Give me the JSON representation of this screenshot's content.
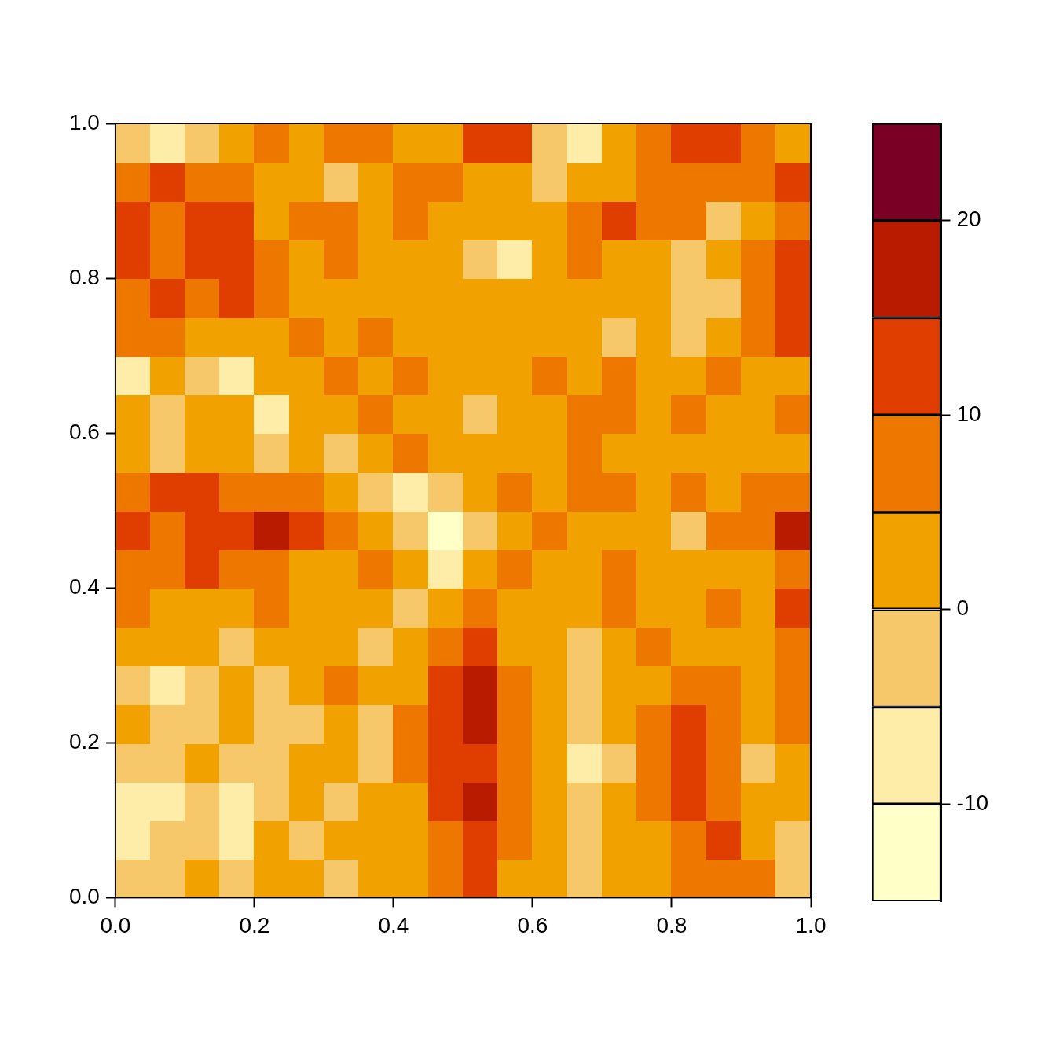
{
  "chart_data": {
    "type": "heatmap",
    "xlim": [
      0,
      1
    ],
    "xticks": [
      {
        "value": 0,
        "label": "0.0"
      },
      {
        "value": 0.2,
        "label": "0.2"
      },
      {
        "value": 0.4,
        "label": "0.4"
      },
      {
        "value": 0.6,
        "label": "0.6"
      },
      {
        "value": 0.8,
        "label": "0.8"
      },
      {
        "value": 1,
        "label": "1.0"
      }
    ],
    "ylim": [
      0,
      1
    ],
    "yticks": [
      {
        "value": 0,
        "label": "0.0"
      },
      {
        "value": 0.2,
        "label": "0.2"
      },
      {
        "value": 0.4,
        "label": "0.4"
      },
      {
        "value": 0.6,
        "label": "0.6"
      },
      {
        "value": 0.8,
        "label": "0.8"
      },
      {
        "value": 1,
        "label": "1.0"
      }
    ],
    "grid": false,
    "x": [
      0.025,
      0.075,
      0.125,
      0.175,
      0.225,
      0.275,
      0.325,
      0.375,
      0.425,
      0.475,
      0.525,
      0.575,
      0.625,
      0.675,
      0.725,
      0.775,
      0.825,
      0.875,
      0.925,
      0.975
    ],
    "y": [
      0.025,
      0.075,
      0.125,
      0.175,
      0.225,
      0.275,
      0.325,
      0.375,
      0.425,
      0.475,
      0.525,
      0.575,
      0.625,
      0.675,
      0.725,
      0.775,
      0.825,
      0.875,
      0.925,
      0.975
    ],
    "z": [
      [
        -2,
        -3,
        2,
        -2,
        2,
        2,
        -2,
        2,
        2,
        7,
        12,
        2,
        2,
        -2,
        2,
        2,
        7,
        7,
        7,
        -2
      ],
      [
        -7,
        -2,
        -2,
        -7,
        2,
        -2,
        2,
        2,
        2,
        7,
        12,
        7,
        2,
        -2,
        2,
        2,
        7,
        12,
        2,
        -2
      ],
      [
        -7,
        -7,
        -2,
        -7,
        -2,
        2,
        -2,
        2,
        2,
        12,
        17,
        7,
        2,
        -2,
        2,
        7,
        12,
        7,
        2,
        2
      ],
      [
        -2,
        -2,
        2,
        -2,
        -2,
        2,
        2,
        -2,
        7,
        12,
        12,
        7,
        2,
        -7,
        -2,
        7,
        12,
        7,
        -2,
        2
      ],
      [
        2,
        -2,
        -2,
        2,
        -2,
        -2,
        2,
        -2,
        7,
        12,
        17,
        7,
        2,
        -2,
        2,
        7,
        12,
        7,
        2,
        7
      ],
      [
        -2,
        -7,
        -2,
        2,
        -2,
        2,
        7,
        2,
        2,
        12,
        17,
        7,
        2,
        -2,
        2,
        2,
        7,
        7,
        2,
        7
      ],
      [
        2,
        2,
        2,
        -2,
        2,
        2,
        2,
        -2,
        2,
        7,
        12,
        2,
        2,
        -2,
        2,
        7,
        2,
        2,
        2,
        7
      ],
      [
        7,
        2,
        2,
        2,
        7,
        2,
        2,
        2,
        -2,
        2,
        7,
        2,
        2,
        2,
        7,
        2,
        2,
        7,
        2,
        12
      ],
      [
        7,
        7,
        12,
        7,
        7,
        2,
        2,
        7,
        2,
        -7,
        2,
        7,
        2,
        2,
        7,
        2,
        2,
        2,
        2,
        7
      ],
      [
        12,
        7,
        12,
        12,
        17,
        12,
        7,
        2,
        -2,
        -12,
        -2,
        2,
        7,
        2,
        2,
        2,
        -2,
        7,
        7,
        17
      ],
      [
        7,
        12,
        12,
        7,
        7,
        7,
        2,
        -2,
        -7,
        -2,
        2,
        7,
        2,
        7,
        7,
        2,
        7,
        2,
        7,
        7
      ],
      [
        2,
        -2,
        2,
        2,
        -2,
        2,
        -2,
        2,
        7,
        2,
        2,
        2,
        2,
        7,
        2,
        2,
        2,
        2,
        2,
        2
      ],
      [
        2,
        -2,
        2,
        2,
        -7,
        2,
        2,
        7,
        2,
        2,
        -2,
        2,
        2,
        7,
        7,
        2,
        7,
        2,
        2,
        7
      ],
      [
        -7,
        2,
        -2,
        -7,
        2,
        2,
        7,
        2,
        7,
        2,
        2,
        2,
        7,
        2,
        7,
        2,
        2,
        7,
        2,
        2
      ],
      [
        7,
        7,
        2,
        2,
        2,
        7,
        2,
        7,
        2,
        2,
        2,
        2,
        2,
        2,
        -2,
        2,
        -2,
        2,
        7,
        12
      ],
      [
        7,
        12,
        7,
        12,
        7,
        2,
        2,
        2,
        2,
        2,
        2,
        2,
        2,
        2,
        2,
        2,
        -2,
        -2,
        7,
        12
      ],
      [
        12,
        7,
        12,
        12,
        7,
        2,
        7,
        2,
        2,
        2,
        -2,
        -7,
        2,
        7,
        2,
        2,
        -2,
        2,
        7,
        12
      ],
      [
        12,
        7,
        12,
        12,
        2,
        7,
        7,
        2,
        7,
        2,
        2,
        2,
        2,
        7,
        12,
        7,
        7,
        -2,
        2,
        7
      ],
      [
        7,
        12,
        7,
        7,
        2,
        2,
        -2,
        2,
        7,
        7,
        2,
        2,
        -2,
        2,
        2,
        7,
        7,
        7,
        7,
        12
      ],
      [
        -2,
        -7,
        -2,
        2,
        7,
        2,
        7,
        7,
        2,
        2,
        12,
        12,
        -2,
        -7,
        2,
        7,
        12,
        12,
        7,
        2
      ]
    ],
    "colorbar": {
      "range": [
        -15,
        25
      ],
      "ticks": [
        -10,
        0,
        10,
        20
      ],
      "levels": [
        -15,
        -10,
        -5,
        0,
        5,
        10,
        15,
        20,
        25
      ],
      "colors": [
        "#FFFFC8",
        "#FEEDA8",
        "#F7C86A",
        "#F1A200",
        "#EE7700",
        "#E03E00",
        "#B81B00",
        "#7A0025"
      ]
    }
  }
}
